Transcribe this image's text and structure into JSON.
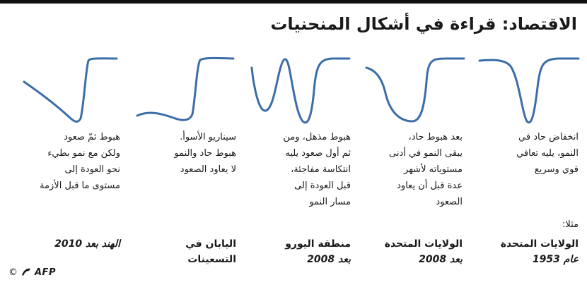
{
  "title": "الاقتصاد: قراءة في أشكال المنحنيات",
  "example_label": "مثلا:",
  "colors": {
    "curve": "#3b6ea8",
    "topbar": "#111111",
    "text": "#1a1a1a"
  },
  "panels": [
    {
      "shape": "V",
      "description": [
        "انخفاض حاد في",
        "النمو، يليه تعافي",
        "قوي وسريع"
      ],
      "example_line1": "الولايات المتحدة",
      "example_line2": "عام 1953"
    },
    {
      "shape": "U",
      "description": [
        "بعد هبوط حاد،",
        "يبقى النمو في أدنى",
        "مستوياته لأشهر",
        "عدة قبل أن يعاود",
        "الصعود"
      ],
      "example_line1": "الولايات المتحدة",
      "example_line2": "بعد 2008"
    },
    {
      "shape": "W",
      "description": [
        "هبوط مذهل، ومن",
        "ثم أول صعود يليه",
        "انتكاسة مفاجئة،",
        "قبل العودة إلى",
        "مسار النمو"
      ],
      "example_line1": "منطقة اليورو",
      "example_line2": "بعد 2008"
    },
    {
      "shape": "L",
      "description": [
        "سيناريو الأسوأ.",
        "هبوط حاد والنمو",
        "لا يعاود الصعود"
      ],
      "example_line1": "اليابان في",
      "example_line2": "التسعينات"
    },
    {
      "shape": "Swoosh",
      "description": [
        "هبوط ثمّ صعود",
        "ولكن مع نمو بطيء",
        "نحو العودة  إلى",
        "مستوى ما قبل الأزمة"
      ],
      "example_line1": "الهند بعد 2010",
      "example_line2": ""
    }
  ],
  "credit": {
    "symbol": "©",
    "agency": "AFP"
  }
}
